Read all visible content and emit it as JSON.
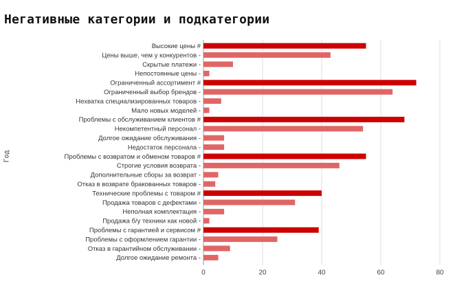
{
  "chart_data": {
    "type": "bar",
    "orientation": "horizontal",
    "title": "Негативные категории и подкатегории",
    "ylabel": "Год",
    "xlabel": "",
    "xlim": [
      0,
      80
    ],
    "x_ticks": [
      "0",
      "20",
      "40",
      "60",
      "80"
    ],
    "grid": true,
    "colors": {
      "category": "#cc0000",
      "subcategory": "#e06666"
    },
    "categories": [
      "Высокие цены #",
      "Цены выше, чем у конкурентов -",
      "Скрытые платежи -",
      "Непостоянные цены -",
      "Ограниченный ассортимент #",
      "Ограниченный выбор брендов -",
      "Нехватка специализированных товаров -",
      "Мало новых моделей -",
      "Проблемы с обслуживанием клиентов #",
      "Некомпетентный персонал -",
      "Долгое ожидание обслуживания -",
      "Недостаток персонала -",
      "Проблемы с возвратом и обменом товаров #",
      "Строгие условия возврата -",
      "Дополнительные сборы за возврат -",
      "Отказ в возврате бракованных товаров -",
      "Технические проблемы с товаром #",
      "Продажа товаров с дефектами -",
      "Неполная комплектация -",
      "Продажа б/у техники как новой -",
      "Проблемы с гарантией и сервисом #",
      "Проблемы с оформлением гарантии -",
      "Отказ в гарантийном обслуживании -",
      "Долгое ожидание ремонта -"
    ],
    "values": [
      55,
      43,
      10,
      2,
      72,
      64,
      6,
      2,
      68,
      54,
      7,
      7,
      55,
      46,
      5,
      4,
      40,
      31,
      7,
      2,
      39,
      25,
      9,
      5
    ],
    "is_category": [
      true,
      false,
      false,
      false,
      true,
      false,
      false,
      false,
      true,
      false,
      false,
      false,
      true,
      false,
      false,
      false,
      true,
      false,
      false,
      false,
      true,
      false,
      false,
      false
    ]
  }
}
